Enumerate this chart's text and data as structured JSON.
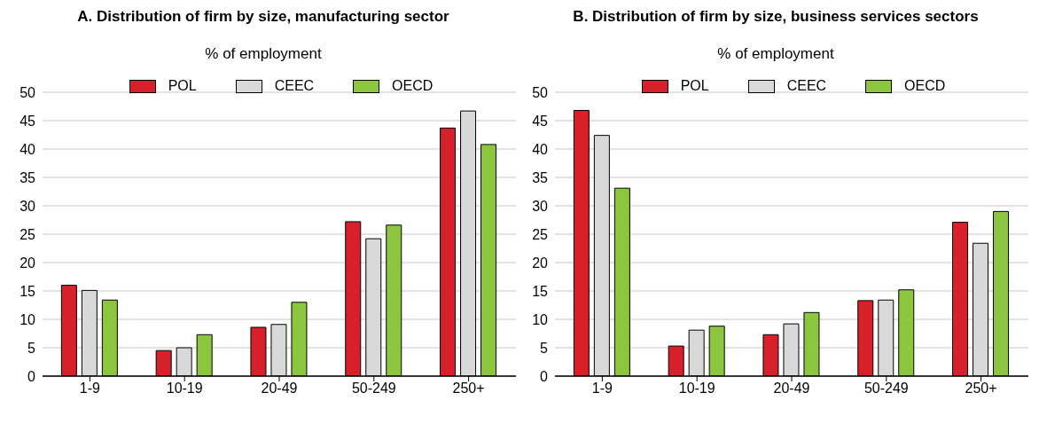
{
  "chart_data": [
    {
      "type": "bar",
      "title": "A. Distribution of firm by size, manufacturing sector",
      "subtitle": "% of employment",
      "categories": [
        "1-9",
        "10-19",
        "20-49",
        "50-249",
        "250+"
      ],
      "series": [
        {
          "name": "POL",
          "color": "#d7202a",
          "values": [
            16.0,
            4.5,
            8.6,
            27.2,
            43.7
          ]
        },
        {
          "name": "CEEC",
          "color": "#d9d9d9",
          "values": [
            15.1,
            5.0,
            9.1,
            24.2,
            46.7
          ]
        },
        {
          "name": "OECD",
          "color": "#8cc63f",
          "values": [
            13.4,
            7.3,
            13.0,
            26.6,
            40.8
          ]
        }
      ],
      "ylim": [
        0,
        50
      ],
      "yticks": [
        0,
        5,
        10,
        15,
        20,
        25,
        30,
        35,
        40,
        45,
        50
      ],
      "grid": "y",
      "legend": "top"
    },
    {
      "type": "bar",
      "title": "B. Distribution of firm by size, business services sectors",
      "subtitle": "% of employment",
      "categories": [
        "1-9",
        "10-19",
        "20-49",
        "50-249",
        "250+"
      ],
      "series": [
        {
          "name": "POL",
          "color": "#d7202a",
          "values": [
            46.8,
            5.3,
            7.3,
            13.3,
            27.1
          ]
        },
        {
          "name": "CEEC",
          "color": "#d9d9d9",
          "values": [
            42.4,
            8.1,
            9.2,
            13.4,
            23.4
          ]
        },
        {
          "name": "OECD",
          "color": "#8cc63f",
          "values": [
            33.1,
            8.8,
            11.2,
            15.2,
            29.0
          ]
        }
      ],
      "ylim": [
        0,
        50
      ],
      "yticks": [
        0,
        5,
        10,
        15,
        20,
        25,
        30,
        35,
        40,
        45,
        50
      ],
      "grid": "y",
      "legend": "top"
    }
  ]
}
